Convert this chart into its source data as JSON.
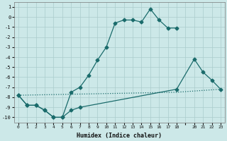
{
  "xlabel": "Humidex (Indice chaleur)",
  "bg_color": "#cce8e8",
  "grid_color": "#aacccc",
  "line_color": "#1a6b6b",
  "xlim": [
    -0.5,
    23.5
  ],
  "ylim": [
    -10.5,
    1.5
  ],
  "line1_x": [
    0,
    1,
    2,
    3,
    4,
    5,
    6,
    7,
    8,
    9,
    10,
    11,
    12,
    13,
    14,
    15,
    16,
    17,
    18
  ],
  "line1_y": [
    -7.8,
    -8.8,
    -8.8,
    -9.3,
    -10.0,
    -10.0,
    -7.5,
    -7.0,
    -5.8,
    -4.3,
    -3.0,
    -0.6,
    -0.3,
    -0.3,
    -0.5,
    0.8,
    -0.3,
    -1.1,
    -1.1
  ],
  "line2_x": [
    0,
    1,
    2,
    3,
    4,
    5,
    6,
    7,
    18,
    20,
    21,
    22,
    23
  ],
  "line2_y": [
    -7.8,
    -8.8,
    -8.8,
    -9.3,
    -10.0,
    -10.0,
    -9.3,
    -9.0,
    -7.2,
    -4.2,
    -5.5,
    -6.3,
    -7.2
  ],
  "line3_x": [
    0,
    18,
    23
  ],
  "line3_y": [
    -7.8,
    -7.5,
    -7.2
  ],
  "xtick_labels": [
    "0",
    "1",
    "2",
    "3",
    "4",
    "5",
    "6",
    "7",
    "8",
    "9",
    "10",
    "11",
    "12",
    "13",
    "14",
    "15",
    "16",
    "17",
    "18",
    "",
    "20",
    "21",
    "22",
    "23"
  ],
  "xtick_vals": [
    0,
    1,
    2,
    3,
    4,
    5,
    6,
    7,
    8,
    9,
    10,
    11,
    12,
    13,
    14,
    15,
    16,
    17,
    18,
    19,
    20,
    21,
    22,
    23
  ],
  "ytick_vals": [
    1,
    0,
    -1,
    -2,
    -3,
    -4,
    -5,
    -6,
    -7,
    -8,
    -9,
    -10
  ],
  "figsize": [
    3.2,
    2.0
  ],
  "dpi": 100
}
